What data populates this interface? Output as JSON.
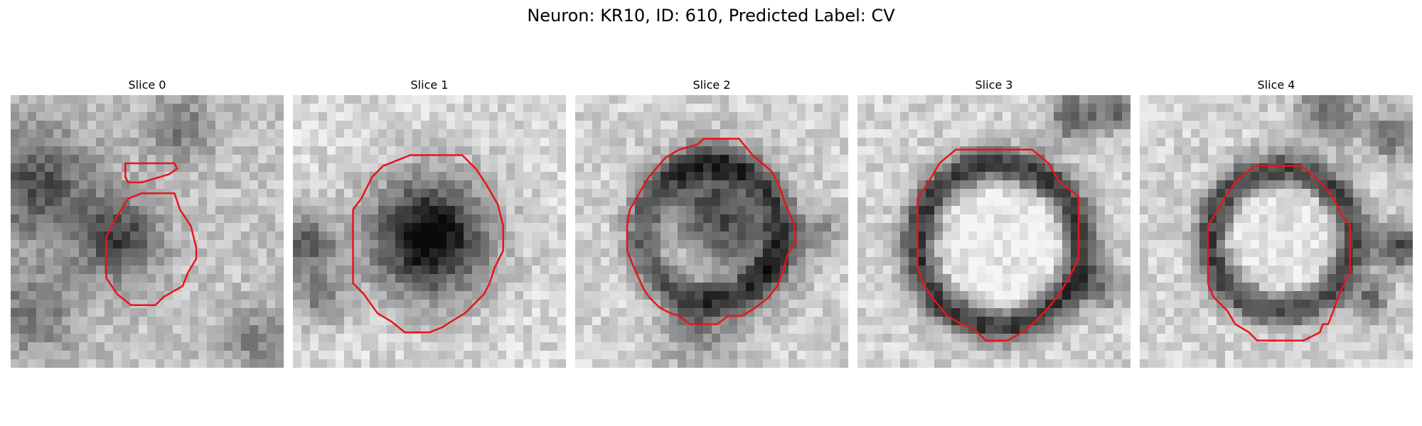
{
  "figure": {
    "title": "Neuron: KR10, ID: 610, Predicted Label: CV",
    "contour_color": "#e8141b",
    "panels": [
      {
        "title": "Slice 0",
        "base": 195,
        "blobs": [
          [
            0.1,
            0.33,
            0.25,
            0.45
          ],
          [
            0.4,
            0.53,
            0.18,
            0.5
          ],
          [
            0.62,
            0.12,
            0.15,
            0.3
          ],
          [
            0.08,
            0.8,
            0.2,
            0.3
          ],
          [
            0.9,
            0.9,
            0.15,
            0.25
          ]
        ],
        "contours": [
          [
            [
              0.42,
              0.25
            ],
            [
              0.6,
              0.25
            ],
            [
              0.61,
              0.27
            ],
            [
              0.58,
              0.29
            ],
            [
              0.48,
              0.32
            ],
            [
              0.43,
              0.32
            ],
            [
              0.42,
              0.3
            ]
          ],
          [
            [
              0.48,
              0.36
            ],
            [
              0.6,
              0.36
            ],
            [
              0.62,
              0.42
            ],
            [
              0.66,
              0.48
            ],
            [
              0.68,
              0.56
            ],
            [
              0.68,
              0.6
            ],
            [
              0.65,
              0.65
            ],
            [
              0.63,
              0.7
            ],
            [
              0.56,
              0.74
            ],
            [
              0.53,
              0.77
            ],
            [
              0.44,
              0.77
            ],
            [
              0.39,
              0.73
            ],
            [
              0.35,
              0.67
            ],
            [
              0.35,
              0.52
            ],
            [
              0.38,
              0.46
            ],
            [
              0.43,
              0.38
            ]
          ]
        ]
      },
      {
        "title": "Slice 1",
        "base": 215,
        "blobs": [
          [
            0.5,
            0.52,
            0.26,
            0.85
          ],
          [
            0.05,
            0.55,
            0.14,
            0.45
          ],
          [
            0.1,
            0.75,
            0.12,
            0.3
          ]
        ],
        "contours": [
          [
            [
              0.43,
              0.22
            ],
            [
              0.62,
              0.22
            ],
            [
              0.67,
              0.27
            ],
            [
              0.71,
              0.33
            ],
            [
              0.75,
              0.4
            ],
            [
              0.77,
              0.48
            ],
            [
              0.77,
              0.57
            ],
            [
              0.74,
              0.63
            ],
            [
              0.72,
              0.69
            ],
            [
              0.7,
              0.73
            ],
            [
              0.63,
              0.8
            ],
            [
              0.58,
              0.83
            ],
            [
              0.55,
              0.85
            ],
            [
              0.5,
              0.87
            ],
            [
              0.41,
              0.87
            ],
            [
              0.36,
              0.83
            ],
            [
              0.31,
              0.8
            ],
            [
              0.26,
              0.73
            ],
            [
              0.22,
              0.69
            ],
            [
              0.22,
              0.42
            ],
            [
              0.25,
              0.38
            ],
            [
              0.29,
              0.3
            ],
            [
              0.33,
              0.26
            ]
          ]
        ]
      },
      {
        "title": "Slice 2",
        "base": 210,
        "blobs": [
          [
            0.5,
            0.4,
            0.22,
            0.6
          ],
          [
            0.65,
            0.6,
            0.2,
            0.35
          ],
          [
            0.45,
            0.85,
            0.18,
            0.3
          ],
          [
            0.9,
            0.5,
            0.1,
            0.25
          ]
        ],
        "ring": [
          0.5,
          0.5,
          0.26,
          0.4
        ],
        "contours": [
          [
            [
              0.47,
              0.16
            ],
            [
              0.6,
              0.16
            ],
            [
              0.65,
              0.22
            ],
            [
              0.72,
              0.28
            ],
            [
              0.75,
              0.34
            ],
            [
              0.77,
              0.4
            ],
            [
              0.8,
              0.47
            ],
            [
              0.81,
              0.54
            ],
            [
              0.78,
              0.58
            ],
            [
              0.76,
              0.65
            ],
            [
              0.74,
              0.7
            ],
            [
              0.71,
              0.74
            ],
            [
              0.66,
              0.78
            ],
            [
              0.61,
              0.81
            ],
            [
              0.56,
              0.81
            ],
            [
              0.52,
              0.84
            ],
            [
              0.42,
              0.84
            ],
            [
              0.38,
              0.81
            ],
            [
              0.35,
              0.8
            ],
            [
              0.31,
              0.78
            ],
            [
              0.27,
              0.74
            ],
            [
              0.25,
              0.71
            ],
            [
              0.21,
              0.62
            ],
            [
              0.19,
              0.57
            ],
            [
              0.19,
              0.48
            ],
            [
              0.2,
              0.42
            ],
            [
              0.24,
              0.35
            ],
            [
              0.27,
              0.3
            ],
            [
              0.33,
              0.23
            ],
            [
              0.38,
              0.2
            ],
            [
              0.45,
              0.18
            ]
          ]
        ]
      },
      {
        "title": "Slice 3",
        "base": 210,
        "blobs": [
          [
            0.8,
            0.08,
            0.12,
            0.45
          ],
          [
            0.95,
            0.05,
            0.08,
            0.4
          ],
          [
            0.9,
            0.7,
            0.1,
            0.35
          ]
        ],
        "ring": [
          0.52,
          0.55,
          0.3,
          0.6
        ],
        "contours": [
          [
            [
              0.36,
              0.2
            ],
            [
              0.64,
              0.2
            ],
            [
              0.7,
              0.25
            ],
            [
              0.74,
              0.32
            ],
            [
              0.81,
              0.37
            ],
            [
              0.81,
              0.6
            ],
            [
              0.78,
              0.66
            ],
            [
              0.74,
              0.73
            ],
            [
              0.69,
              0.79
            ],
            [
              0.62,
              0.86
            ],
            [
              0.55,
              0.9
            ],
            [
              0.47,
              0.9
            ],
            [
              0.43,
              0.86
            ],
            [
              0.38,
              0.84
            ],
            [
              0.33,
              0.81
            ],
            [
              0.28,
              0.75
            ],
            [
              0.24,
              0.69
            ],
            [
              0.22,
              0.63
            ],
            [
              0.22,
              0.38
            ],
            [
              0.26,
              0.32
            ],
            [
              0.3,
              0.25
            ]
          ]
        ]
      },
      {
        "title": "Slice 4",
        "base": 210,
        "blobs": [
          [
            0.7,
            0.05,
            0.14,
            0.4
          ],
          [
            0.92,
            0.15,
            0.1,
            0.4
          ],
          [
            0.95,
            0.55,
            0.1,
            0.55
          ],
          [
            0.85,
            0.75,
            0.08,
            0.4
          ]
        ],
        "ring": [
          0.52,
          0.53,
          0.26,
          0.55
        ],
        "contours": [
          [
            [
              0.42,
              0.26
            ],
            [
              0.59,
              0.26
            ],
            [
              0.64,
              0.3
            ],
            [
              0.69,
              0.35
            ],
            [
              0.71,
              0.38
            ],
            [
              0.74,
              0.44
            ],
            [
              0.77,
              0.48
            ],
            [
              0.77,
              0.65
            ],
            [
              0.73,
              0.73
            ],
            [
              0.71,
              0.79
            ],
            [
              0.69,
              0.84
            ],
            [
              0.67,
              0.84
            ],
            [
              0.66,
              0.87
            ],
            [
              0.6,
              0.9
            ],
            [
              0.43,
              0.9
            ],
            [
              0.4,
              0.87
            ],
            [
              0.35,
              0.84
            ],
            [
              0.32,
              0.79
            ],
            [
              0.27,
              0.74
            ],
            [
              0.25,
              0.69
            ],
            [
              0.25,
              0.48
            ],
            [
              0.28,
              0.43
            ],
            [
              0.31,
              0.38
            ],
            [
              0.35,
              0.32
            ]
          ]
        ]
      }
    ]
  }
}
